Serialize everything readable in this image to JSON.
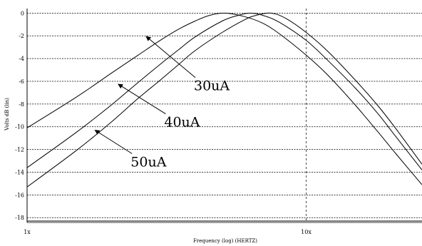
{
  "chart_data": {
    "type": "line",
    "xlabel": "Frequency (log) (HERTZ)",
    "ylabel": "Volts dB (lin)",
    "x_scale": "log",
    "xlim": [
      1,
      26
    ],
    "ylim": [
      -18.3,
      0.4
    ],
    "grid": true,
    "x_ticks": [
      {
        "value": 1,
        "label": "1x"
      },
      {
        "value": 10,
        "label": "10x"
      }
    ],
    "y_ticks": [
      {
        "value": 0,
        "label": "0"
      },
      {
        "value": -2,
        "label": "-2"
      },
      {
        "value": -4,
        "label": "-4"
      },
      {
        "value": -6,
        "label": "-6"
      },
      {
        "value": -8,
        "label": "-8"
      },
      {
        "value": -10,
        "label": "-10"
      },
      {
        "value": -12,
        "label": "-12"
      },
      {
        "value": -14,
        "label": "-14"
      },
      {
        "value": -16,
        "label": "-16"
      },
      {
        "value": -18,
        "label": "-18"
      }
    ],
    "series": [
      {
        "name": "30uA",
        "x": [
          1,
          1.5,
          2,
          2.5,
          3,
          3.5,
          4,
          4.5,
          5.1,
          6,
          7,
          8,
          10,
          12,
          15,
          18,
          21,
          26
        ],
        "y": [
          -10.1,
          -7.4,
          -5.3,
          -3.7,
          -2.4,
          -1.4,
          -0.7,
          -0.2,
          0,
          -0.3,
          -0.9,
          -1.8,
          -3.7,
          -5.5,
          -8.1,
          -10.4,
          -12.4,
          -15.1
        ]
      },
      {
        "name": "40uA",
        "x": [
          1,
          1.5,
          2,
          2.5,
          3,
          3.5,
          4,
          5,
          5.7,
          6.3,
          7,
          8,
          10,
          12,
          15,
          18,
          21,
          26
        ],
        "y": [
          -13.6,
          -10.5,
          -8.1,
          -6.1,
          -4.5,
          -3.2,
          -2.1,
          -0.7,
          -0.2,
          0,
          -0.2,
          -0.8,
          -2.4,
          -4.2,
          -6.6,
          -8.8,
          -10.9,
          -13.8
        ]
      },
      {
        "name": "50uA",
        "x": [
          1,
          1.5,
          2,
          2.5,
          3,
          3.5,
          4,
          5,
          6,
          6.6,
          7.5,
          8.5,
          10,
          12,
          15,
          18,
          21,
          26
        ],
        "y": [
          -15.3,
          -12.1,
          -9.6,
          -7.5,
          -5.9,
          -4.5,
          -3.3,
          -1.7,
          -0.6,
          -0.2,
          0,
          -0.5,
          -1.7,
          -3.4,
          -5.9,
          -8.1,
          -10.2,
          -13.3
        ]
      }
    ],
    "annotations": [
      {
        "text": "30uA",
        "x": 3.96,
        "y": -6.8,
        "arrow_to": [
          2.67,
          -2.05
        ]
      },
      {
        "text": "40uA",
        "x": 3.1,
        "y": -10.0,
        "arrow_to": [
          2.12,
          -6.25
        ]
      },
      {
        "text": "50uA",
        "x": 2.35,
        "y": -13.5,
        "arrow_to": [
          1.75,
          -10.3
        ]
      }
    ]
  }
}
